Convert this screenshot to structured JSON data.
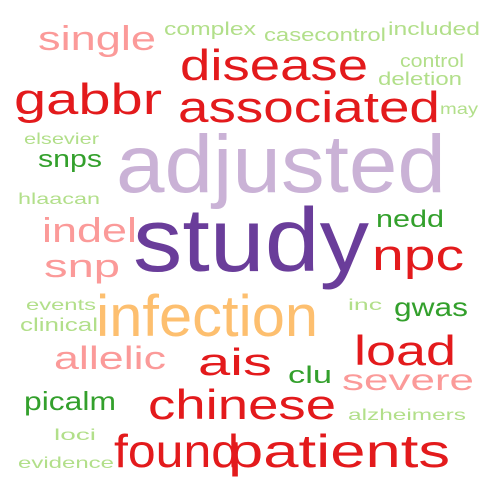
{
  "colors": {
    "background": "#ffffff",
    "dark_purple": "#6a3d9a",
    "light_purple": "#cab2d6",
    "dark_red": "#e31a1c",
    "pink": "#fb9a99",
    "orange": "#fdbf6f",
    "dark_green": "#33a02c",
    "light_green": "#b2df8a"
  },
  "words": [
    {
      "text": "study",
      "color": "#6a3d9a"
    },
    {
      "text": "adjusted",
      "color": "#cab2d6"
    },
    {
      "text": "infection",
      "color": "#fdbf6f"
    },
    {
      "text": "found",
      "color": "#e31a1c"
    },
    {
      "text": "patients",
      "color": "#e31a1c"
    },
    {
      "text": "associated",
      "color": "#e31a1c"
    },
    {
      "text": "disease",
      "color": "#e31a1c"
    },
    {
      "text": "chinese",
      "color": "#e31a1c"
    },
    {
      "text": "gabbr",
      "color": "#e31a1c"
    },
    {
      "text": "npc",
      "color": "#e31a1c"
    },
    {
      "text": "load",
      "color": "#e31a1c"
    },
    {
      "text": "ais",
      "color": "#e31a1c"
    },
    {
      "text": "single",
      "color": "#fb9a99"
    },
    {
      "text": "indel",
      "color": "#fb9a99"
    },
    {
      "text": "snp",
      "color": "#fb9a99"
    },
    {
      "text": "allelic",
      "color": "#fb9a99"
    },
    {
      "text": "severe",
      "color": "#fb9a99"
    },
    {
      "text": "nedd",
      "color": "#33a02c"
    },
    {
      "text": "gwas",
      "color": "#33a02c"
    },
    {
      "text": "snps",
      "color": "#33a02c"
    },
    {
      "text": "clu",
      "color": "#33a02c"
    },
    {
      "text": "picalm",
      "color": "#33a02c"
    },
    {
      "text": "complex",
      "color": "#b2df8a"
    },
    {
      "text": "casecontrol",
      "color": "#b2df8a"
    },
    {
      "text": "included",
      "color": "#b2df8a"
    },
    {
      "text": "control",
      "color": "#b2df8a"
    },
    {
      "text": "deletion",
      "color": "#b2df8a"
    },
    {
      "text": "may",
      "color": "#b2df8a"
    },
    {
      "text": "elsevier",
      "color": "#b2df8a"
    },
    {
      "text": "hlaacan",
      "color": "#b2df8a"
    },
    {
      "text": "events",
      "color": "#b2df8a"
    },
    {
      "text": "clinical",
      "color": "#b2df8a"
    },
    {
      "text": "inc",
      "color": "#b2df8a"
    },
    {
      "text": "alzheimers",
      "color": "#b2df8a"
    },
    {
      "text": "loci",
      "color": "#b2df8a"
    },
    {
      "text": "evidence",
      "color": "#b2df8a"
    }
  ]
}
